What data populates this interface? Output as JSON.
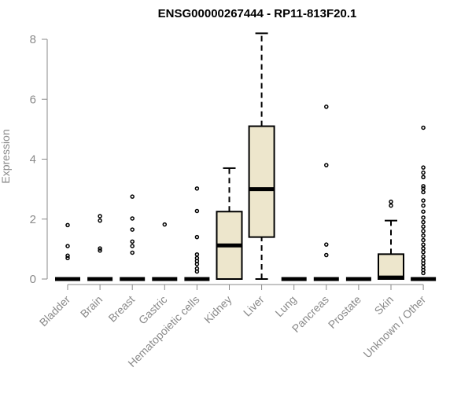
{
  "chart_data": {
    "type": "box",
    "title": "ENSG00000267444 - RP11-813F20.1",
    "xlabel": "",
    "ylabel": "Expression",
    "ylim": [
      0,
      8.3
    ],
    "yticks": [
      0,
      2,
      4,
      6,
      8
    ],
    "colors": {
      "box_fill": "#ede6cc",
      "stroke": "#000000",
      "axis": "#8a8a8a",
      "outlier": "#000000"
    },
    "categories": [
      "Bladder",
      "Brain",
      "Breast",
      "Gastric",
      "Hematopoietic cells",
      "Kidney",
      "Liver",
      "Lung",
      "Pancreas",
      "Prostate",
      "Skin",
      "Unknown / Other"
    ],
    "boxes": [
      {
        "category": "Bladder",
        "min": 0,
        "q1": 0,
        "median": 0,
        "q3": 0,
        "max": 0,
        "outliers": [
          0.7,
          0.78,
          1.1,
          1.8
        ]
      },
      {
        "category": "Brain",
        "min": 0,
        "q1": 0,
        "median": 0,
        "q3": 0,
        "max": 0,
        "outliers": [
          0.95,
          1.02,
          1.95,
          2.1
        ]
      },
      {
        "category": "Breast",
        "min": 0,
        "q1": 0,
        "median": 0,
        "q3": 0,
        "max": 0,
        "outliers": [
          0.88,
          1.1,
          1.25,
          1.65,
          2.02,
          2.75
        ]
      },
      {
        "category": "Gastric",
        "min": 0,
        "q1": 0,
        "median": 0,
        "q3": 0,
        "max": 0,
        "outliers": [
          1.82
        ]
      },
      {
        "category": "Hematopoietic cells",
        "min": 0,
        "q1": 0,
        "median": 0,
        "q3": 0,
        "max": 0,
        "outliers": [
          0.25,
          0.35,
          0.5,
          0.6,
          0.7,
          0.82,
          1.4,
          2.27,
          3.02
        ]
      },
      {
        "category": "Kidney",
        "min": 0,
        "q1": 0,
        "median": 1.12,
        "q3": 2.25,
        "max": 3.7,
        "outliers": []
      },
      {
        "category": "Liver",
        "min": 0,
        "q1": 1.4,
        "median": 3.0,
        "q3": 5.1,
        "max": 8.2,
        "outliers": []
      },
      {
        "category": "Lung",
        "min": 0,
        "q1": 0,
        "median": 0,
        "q3": 0,
        "max": 0,
        "outliers": []
      },
      {
        "category": "Pancreas",
        "min": 0,
        "q1": 0,
        "median": 0,
        "q3": 0,
        "max": 0,
        "outliers": [
          0.8,
          1.15,
          3.8,
          5.75
        ]
      },
      {
        "category": "Prostate",
        "min": 0,
        "q1": 0,
        "median": 0,
        "q3": 0,
        "max": 0,
        "outliers": []
      },
      {
        "category": "Skin",
        "min": 0,
        "q1": 0,
        "median": 0.05,
        "q3": 0.83,
        "max": 1.95,
        "outliers": [
          2.45,
          2.58
        ]
      },
      {
        "category": "Unknown / Other",
        "min": 0,
        "q1": 0,
        "median": 0,
        "q3": 0,
        "max": 0,
        "outliers": [
          0.2,
          0.3,
          0.4,
          0.52,
          0.62,
          0.75,
          0.9,
          1.02,
          1.15,
          1.3,
          1.45,
          1.6,
          1.75,
          1.9,
          2.05,
          2.25,
          2.45,
          2.62,
          2.9,
          3.02,
          3.1,
          3.4,
          3.55,
          3.72,
          5.05
        ]
      }
    ]
  }
}
